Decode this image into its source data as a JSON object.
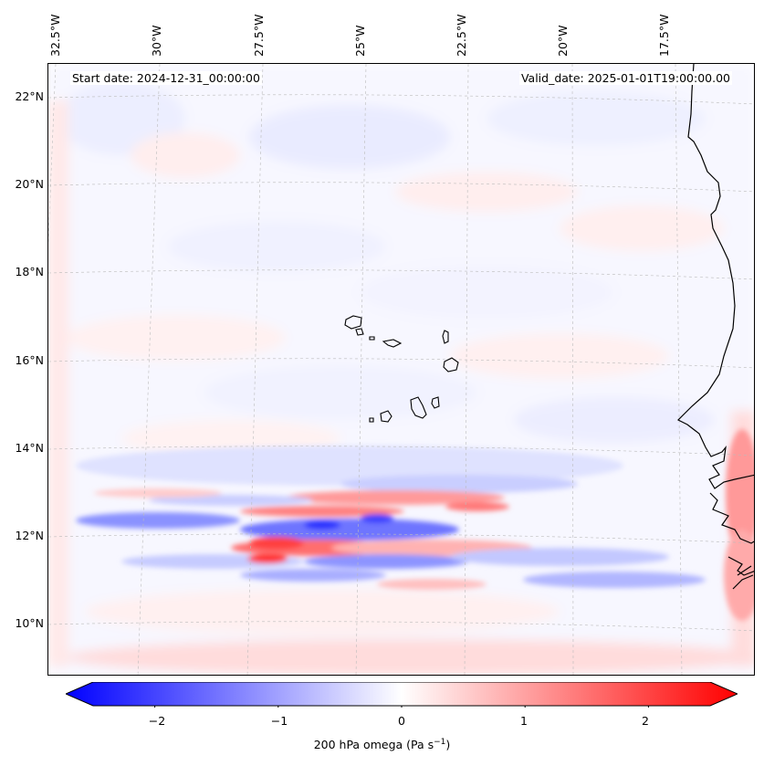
{
  "map": {
    "start_date": "Start date: 2024-12-31_00:00:00",
    "valid_date": "Valid_date: 2025-01-01T19:00:00.00",
    "region": "Eastern tropical North Atlantic / Cape Verde / West African coast",
    "field": "200 hPa omega"
  },
  "axes": {
    "lat_ticks": [
      "22°N",
      "20°N",
      "18°N",
      "16°N",
      "14°N",
      "12°N",
      "10°N"
    ],
    "lon_ticks": [
      "32.5°W",
      "30°W",
      "27.5°W",
      "25°W",
      "22.5°W",
      "20°W",
      "17.5°W"
    ]
  },
  "colorbar": {
    "ticks": [
      "−2",
      "−1",
      "0",
      "1",
      "2"
    ],
    "tick_values": [
      -2,
      -1,
      0,
      1,
      2
    ],
    "range": [
      -2.5,
      2.5
    ],
    "label_main": "200 hPa omega (Pa s",
    "label_sup": "−1",
    "label_end": ")",
    "color_negative": "#0000ff",
    "color_zero": "#ffffff",
    "color_positive": "#ff0000"
  },
  "colors": {
    "coastline": "#000000",
    "gridline": "#bbbbbb"
  }
}
